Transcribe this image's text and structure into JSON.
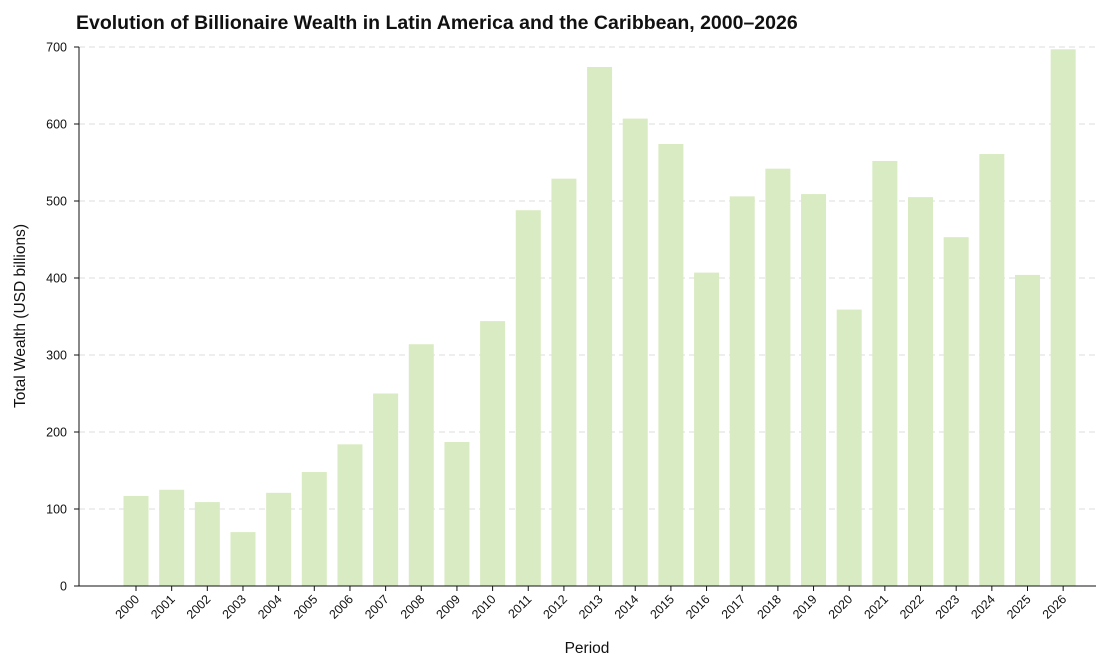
{
  "chart_data": {
    "type": "bar",
    "title": "Evolution of Billionaire Wealth in Latin America and the Caribbean, 2000–2026",
    "xlabel": "Period",
    "ylabel": "Total Wealth (USD billions)",
    "categories": [
      "2000",
      "2001",
      "2002",
      "2003",
      "2004",
      "2005",
      "2006",
      "2007",
      "2008",
      "2009",
      "2010",
      "2011",
      "2012",
      "2013",
      "2014",
      "2015",
      "2016",
      "2017",
      "2018",
      "2019",
      "2020",
      "2021",
      "2022",
      "2023",
      "2024",
      "2025",
      "2026"
    ],
    "values": [
      117,
      125,
      109,
      70,
      121,
      148,
      184,
      250,
      314,
      187,
      344,
      488,
      529,
      674,
      607,
      574,
      407,
      506,
      542,
      509,
      359,
      552,
      505,
      453,
      561,
      404,
      697
    ],
    "ylim": [
      0,
      700
    ],
    "yticks": [
      0,
      100,
      200,
      300,
      400,
      500,
      600,
      700
    ],
    "grid": "horizontal dashed",
    "bar_color": "#d9ebc2",
    "grid_color": "#dcdcdc"
  }
}
